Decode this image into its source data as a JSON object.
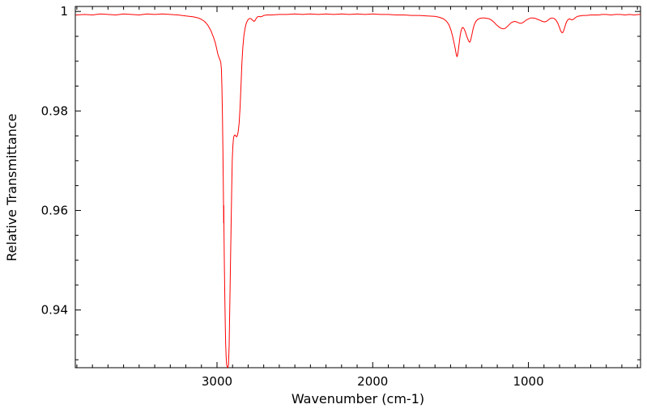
{
  "colors": {
    "line": "#ff0000",
    "axis": "#000000",
    "background": "#ffffff",
    "text": "#000000"
  },
  "chart_data": {
    "type": "line",
    "xlabel": "Wavenumber (cm-1)",
    "ylabel": "Relative Transmittance",
    "x_axis_reversed": true,
    "xlim": [
      3910,
      280
    ],
    "ylim": [
      0.9284,
      1.001
    ],
    "x_ticks": [
      {
        "v": 3000,
        "label": "3000"
      },
      {
        "v": 2000,
        "label": "2000"
      },
      {
        "v": 1000,
        "label": "1000"
      }
    ],
    "y_ticks": [
      {
        "v": 0.94,
        "label": "0.94"
      },
      {
        "v": 0.96,
        "label": "0.96"
      },
      {
        "v": 0.98,
        "label": "0.98"
      },
      {
        "v": 1,
        "label": "1"
      }
    ],
    "x_minor_step": 100,
    "y_minor_step": 0.005,
    "grid": false,
    "legend": "none",
    "series": [
      {
        "color": "#ff0000",
        "points": [
          [
            3905,
            0.9993
          ],
          [
            3850,
            0.9994
          ],
          [
            3800,
            0.9993
          ],
          [
            3750,
            0.9995
          ],
          [
            3700,
            0.9994
          ],
          [
            3650,
            0.9993
          ],
          [
            3600,
            0.9995
          ],
          [
            3550,
            0.9994
          ],
          [
            3500,
            0.9993
          ],
          [
            3450,
            0.9995
          ],
          [
            3400,
            0.9994
          ],
          [
            3350,
            0.9995
          ],
          [
            3300,
            0.9994
          ],
          [
            3250,
            0.9993
          ],
          [
            3200,
            0.9991
          ],
          [
            3150,
            0.9989
          ],
          [
            3120,
            0.9987
          ],
          [
            3100,
            0.9984
          ],
          [
            3080,
            0.998
          ],
          [
            3060,
            0.9973
          ],
          [
            3040,
            0.9962
          ],
          [
            3025,
            0.995
          ],
          [
            3012,
            0.9938
          ],
          [
            3002,
            0.9925
          ],
          [
            2995,
            0.9915
          ],
          [
            2988,
            0.9908
          ],
          [
            2982,
            0.9904
          ],
          [
            2976,
            0.9898
          ],
          [
            2972,
            0.9885
          ],
          [
            2968,
            0.9845
          ],
          [
            2965,
            0.979
          ],
          [
            2962,
            0.972
          ],
          [
            2960,
            0.966
          ],
          [
            2958,
            0.96
          ],
          [
            2957,
            0.9575
          ],
          [
            2956,
            0.961
          ],
          [
            2955,
            0.956
          ],
          [
            2953,
            0.95
          ],
          [
            2950,
            0.943
          ],
          [
            2947,
            0.937
          ],
          [
            2944,
            0.933
          ],
          [
            2941,
            0.9305
          ],
          [
            2938,
            0.929
          ],
          [
            2934,
            0.9285
          ],
          [
            2930,
            0.9284
          ],
          [
            2926,
            0.929
          ],
          [
            2922,
            0.933
          ],
          [
            2918,
            0.94
          ],
          [
            2914,
            0.948
          ],
          [
            2910,
            0.956
          ],
          [
            2906,
            0.964
          ],
          [
            2902,
            0.97
          ],
          [
            2898,
            0.973
          ],
          [
            2894,
            0.9746
          ],
          [
            2890,
            0.975
          ],
          [
            2885,
            0.9752
          ],
          [
            2880,
            0.975
          ],
          [
            2875,
            0.9748
          ],
          [
            2870,
            0.975
          ],
          [
            2864,
            0.9758
          ],
          [
            2858,
            0.9775
          ],
          [
            2852,
            0.9805
          ],
          [
            2846,
            0.985
          ],
          [
            2840,
            0.9895
          ],
          [
            2834,
            0.9928
          ],
          [
            2828,
            0.995
          ],
          [
            2820,
            0.9966
          ],
          [
            2812,
            0.9976
          ],
          [
            2804,
            0.9982
          ],
          [
            2796,
            0.9985
          ],
          [
            2788,
            0.9986
          ],
          [
            2780,
            0.9985
          ],
          [
            2770,
            0.9982
          ],
          [
            2762,
            0.998
          ],
          [
            2755,
            0.9982
          ],
          [
            2748,
            0.9986
          ],
          [
            2740,
            0.9989
          ],
          [
            2730,
            0.999
          ],
          [
            2720,
            0.9989
          ],
          [
            2710,
            0.999
          ],
          [
            2700,
            0.9992
          ],
          [
            2680,
            0.9993
          ],
          [
            2650,
            0.9993
          ],
          [
            2600,
            0.9994
          ],
          [
            2550,
            0.9994
          ],
          [
            2500,
            0.9995
          ],
          [
            2450,
            0.9994
          ],
          [
            2400,
            0.9995
          ],
          [
            2350,
            0.9994
          ],
          [
            2300,
            0.9995
          ],
          [
            2250,
            0.9994
          ],
          [
            2200,
            0.9995
          ],
          [
            2150,
            0.9994
          ],
          [
            2100,
            0.9995
          ],
          [
            2050,
            0.9994
          ],
          [
            2000,
            0.9995
          ],
          [
            1950,
            0.9994
          ],
          [
            1900,
            0.9994
          ],
          [
            1850,
            0.9993
          ],
          [
            1800,
            0.9993
          ],
          [
            1750,
            0.9992
          ],
          [
            1700,
            0.9992
          ],
          [
            1650,
            0.9991
          ],
          [
            1600,
            0.999
          ],
          [
            1570,
            0.9988
          ],
          [
            1545,
            0.9985
          ],
          [
            1525,
            0.998
          ],
          [
            1510,
            0.9973
          ],
          [
            1497,
            0.9962
          ],
          [
            1487,
            0.995
          ],
          [
            1478,
            0.9938
          ],
          [
            1470,
            0.9925
          ],
          [
            1464,
            0.9915
          ],
          [
            1459,
            0.9909
          ],
          [
            1455,
            0.9912
          ],
          [
            1450,
            0.9922
          ],
          [
            1444,
            0.9938
          ],
          [
            1438,
            0.9952
          ],
          [
            1432,
            0.9962
          ],
          [
            1426,
            0.9967
          ],
          [
            1420,
            0.9968
          ],
          [
            1413,
            0.9965
          ],
          [
            1406,
            0.996
          ],
          [
            1398,
            0.9952
          ],
          [
            1390,
            0.9945
          ],
          [
            1383,
            0.994
          ],
          [
            1377,
            0.9938
          ],
          [
            1371,
            0.9942
          ],
          [
            1364,
            0.9952
          ],
          [
            1356,
            0.9964
          ],
          [
            1348,
            0.9973
          ],
          [
            1338,
            0.998
          ],
          [
            1326,
            0.9984
          ],
          [
            1312,
            0.9986
          ],
          [
            1298,
            0.9987
          ],
          [
            1282,
            0.9987
          ],
          [
            1266,
            0.9986
          ],
          [
            1250,
            0.9985
          ],
          [
            1235,
            0.9982
          ],
          [
            1220,
            0.9978
          ],
          [
            1205,
            0.9973
          ],
          [
            1190,
            0.9969
          ],
          [
            1175,
            0.9966
          ],
          [
            1162,
            0.9965
          ],
          [
            1150,
            0.9966
          ],
          [
            1138,
            0.9969
          ],
          [
            1125,
            0.9973
          ],
          [
            1112,
            0.9977
          ],
          [
            1100,
            0.9979
          ],
          [
            1088,
            0.998
          ],
          [
            1075,
            0.9979
          ],
          [
            1062,
            0.9977
          ],
          [
            1050,
            0.9976
          ],
          [
            1038,
            0.9977
          ],
          [
            1025,
            0.998
          ],
          [
            1012,
            0.9983
          ],
          [
            1000,
            0.9985
          ],
          [
            985,
            0.9987
          ],
          [
            970,
            0.9987
          ],
          [
            955,
            0.9986
          ],
          [
            940,
            0.9984
          ],
          [
            925,
            0.9982
          ],
          [
            910,
            0.998
          ],
          [
            897,
            0.9979
          ],
          [
            885,
            0.998
          ],
          [
            872,
            0.9983
          ],
          [
            860,
            0.9986
          ],
          [
            848,
            0.9987
          ],
          [
            836,
            0.9986
          ],
          [
            824,
            0.9983
          ],
          [
            812,
            0.9977
          ],
          [
            802,
            0.9969
          ],
          [
            794,
            0.9962
          ],
          [
            787,
            0.9958
          ],
          [
            781,
            0.9957
          ],
          [
            775,
            0.996
          ],
          [
            768,
            0.9967
          ],
          [
            760,
            0.9975
          ],
          [
            752,
            0.9981
          ],
          [
            744,
            0.9984
          ],
          [
            736,
            0.9985
          ],
          [
            728,
            0.9984
          ],
          [
            720,
            0.9983
          ],
          [
            712,
            0.9984
          ],
          [
            704,
            0.9986
          ],
          [
            696,
            0.9988
          ],
          [
            685,
            0.999
          ],
          [
            670,
            0.9991
          ],
          [
            650,
            0.9992
          ],
          [
            625,
            0.9992
          ],
          [
            600,
            0.9993
          ],
          [
            575,
            0.9993
          ],
          [
            550,
            0.9993
          ],
          [
            525,
            0.9994
          ],
          [
            500,
            0.9994
          ],
          [
            470,
            0.9993
          ],
          [
            440,
            0.9994
          ],
          [
            410,
            0.9994
          ],
          [
            380,
            0.9993
          ],
          [
            350,
            0.9994
          ],
          [
            320,
            0.9993
          ],
          [
            290,
            0.9994
          ],
          [
            282,
            0.9994
          ]
        ]
      }
    ]
  }
}
